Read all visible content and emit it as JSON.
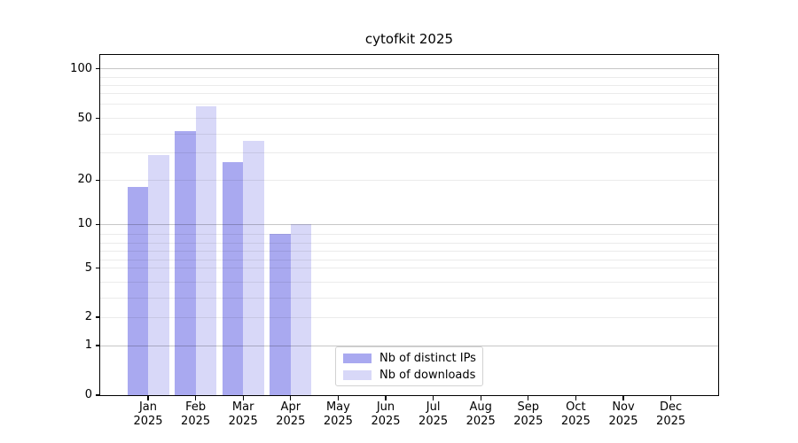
{
  "chart_data": {
    "type": "bar",
    "title": "cytofkit 2025",
    "categories": [
      "Jan 2025",
      "Feb 2025",
      "Mar 2025",
      "Apr 2025",
      "May 2025",
      "Jun 2025",
      "Jul 2025",
      "Aug 2025",
      "Sep 2025",
      "Oct 2025",
      "Nov 2025",
      "Dec 2025"
    ],
    "series": [
      {
        "name": "Nb of distinct IPs",
        "color": "#a9a9f0",
        "values": [
          18,
          42,
          26,
          9,
          0,
          0,
          0,
          0,
          0,
          0,
          0,
          0
        ]
      },
      {
        "name": "Nb of downloads",
        "color": "#d8d8f8",
        "values": [
          29,
          58,
          36,
          10,
          0,
          0,
          0,
          0,
          0,
          0,
          0,
          0
        ]
      }
    ],
    "xlabel": "",
    "ylabel": "",
    "y_axis": {
      "scale": "log",
      "tick_labels": [
        "0",
        "1",
        "2",
        "5",
        "10",
        "20",
        "50",
        "100"
      ],
      "ticks": [
        0,
        1,
        2,
        5,
        10,
        20,
        50,
        100
      ],
      "grid_major": [
        1,
        10,
        100
      ],
      "grid_minor": [
        2,
        3,
        4,
        5,
        6,
        7,
        8,
        9,
        20,
        30,
        40,
        50,
        60,
        70,
        80,
        90
      ]
    },
    "legend_position": "lower center",
    "grid": "on"
  },
  "colors": {
    "grid_major": "rgba(0,0,0,0.22)",
    "grid_minor": "rgba(0,0,0,0.08)",
    "axis": "#000000",
    "legend_border": "#d2d2d2"
  }
}
